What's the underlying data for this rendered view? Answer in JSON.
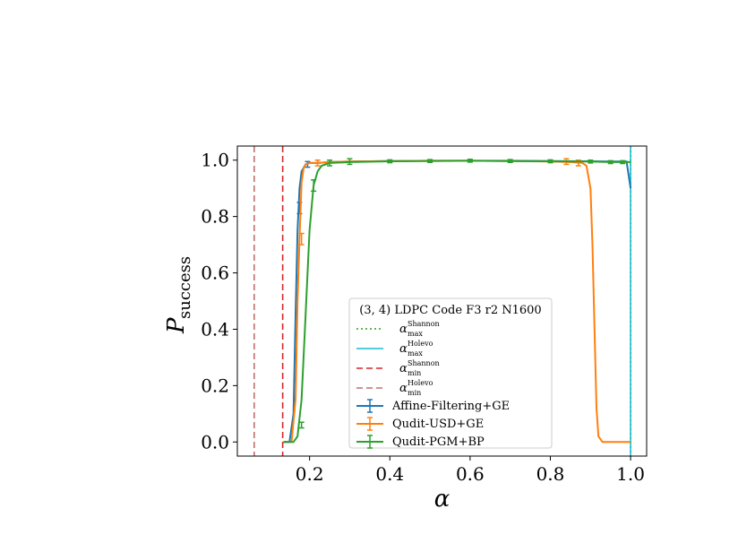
{
  "chart_data": {
    "type": "line",
    "title": "",
    "xlabel": "α",
    "ylabel": "P",
    "ylabel_sub": "success",
    "xlim": [
      0.02,
      1.04
    ],
    "ylim": [
      -0.05,
      1.05
    ],
    "xticks": [
      0.2,
      0.4,
      0.6,
      0.8,
      1.0
    ],
    "xtick_labels": [
      "0.2",
      "0.4",
      "0.6",
      "0.8",
      "1.0"
    ],
    "yticks": [
      0.0,
      0.2,
      0.4,
      0.6,
      0.8,
      1.0
    ],
    "ytick_labels": [
      "0.0",
      "0.2",
      "0.4",
      "0.6",
      "0.8",
      "1.0"
    ],
    "grid": false,
    "legend_placement": "lower-center",
    "legend_title": "(3, 4) LDPC Code F3 r2 N1600",
    "vlines": [
      {
        "name": "α",
        "sup": "Shannon",
        "sub": "max",
        "x": 1.0,
        "color": "#2ca02c",
        "style": "dotted"
      },
      {
        "name": "α",
        "sup": "Holevo",
        "sub": "max",
        "x": 1.0,
        "color": "#17becf",
        "style": "solid"
      },
      {
        "name": "α",
        "sup": "Shannon",
        "sub": "min",
        "x": 0.133,
        "color": "#d62728",
        "style": "dashed"
      },
      {
        "name": "α",
        "sup": "Holevo",
        "sub": "min",
        "x": 0.062,
        "color": "#c1706b",
        "style": "dashed"
      }
    ],
    "series": [
      {
        "name": "Affine-Filtering+GE",
        "color": "#1f77b4",
        "x": [
          0.135,
          0.15,
          0.16,
          0.165,
          0.17,
          0.175,
          0.18,
          0.19,
          0.2,
          0.22,
          0.25,
          0.3,
          0.4,
          0.5,
          0.6,
          0.7,
          0.8,
          0.9,
          0.95,
          0.99,
          1.0
        ],
        "y": [
          0.0,
          0.0,
          0.1,
          0.45,
          0.75,
          0.9,
          0.96,
          0.985,
          0.99,
          0.99,
          0.993,
          0.995,
          0.997,
          0.998,
          0.998,
          0.998,
          0.997,
          0.996,
          0.995,
          0.995,
          0.9
        ],
        "errorbars": [
          [
            0.175,
            0.83,
            0.02
          ],
          [
            0.195,
            0.985,
            0.01
          ]
        ]
      },
      {
        "name": "Qudit-USD+GE",
        "color": "#ff7f0e",
        "x": [
          0.135,
          0.155,
          0.165,
          0.17,
          0.175,
          0.18,
          0.185,
          0.19,
          0.2,
          0.22,
          0.25,
          0.3,
          0.4,
          0.5,
          0.6,
          0.7,
          0.8,
          0.85,
          0.88,
          0.89,
          0.9,
          0.905,
          0.91,
          0.915,
          0.92,
          0.93,
          1.0
        ],
        "y": [
          0.0,
          0.0,
          0.15,
          0.5,
          0.72,
          0.92,
          0.97,
          0.985,
          0.99,
          0.99,
          0.993,
          0.995,
          0.997,
          0.998,
          0.998,
          0.997,
          0.995,
          0.993,
          0.99,
          0.98,
          0.9,
          0.7,
          0.4,
          0.12,
          0.02,
          0.0,
          0.0
        ],
        "errorbars": [
          [
            0.18,
            0.72,
            0.02
          ],
          [
            0.22,
            0.99,
            0.01
          ],
          [
            0.84,
            0.995,
            0.01
          ],
          [
            0.87,
            0.99,
            0.01
          ]
        ]
      },
      {
        "name": "Qudit-PGM+BP",
        "color": "#2ca02c",
        "x": [
          0.135,
          0.16,
          0.17,
          0.18,
          0.19,
          0.2,
          0.21,
          0.22,
          0.23,
          0.25,
          0.3,
          0.4,
          0.5,
          0.6,
          0.7,
          0.8,
          0.9,
          0.95,
          0.98,
          1.0
        ],
        "y": [
          0.0,
          0.0,
          0.02,
          0.15,
          0.45,
          0.75,
          0.91,
          0.96,
          0.98,
          0.99,
          0.993,
          0.996,
          0.997,
          0.998,
          0.997,
          0.996,
          0.995,
          0.993,
          0.993,
          0.993
        ],
        "errorbars": [
          [
            0.18,
            0.06,
            0.01
          ],
          [
            0.21,
            0.91,
            0.02
          ],
          [
            0.25,
            0.99,
            0.01
          ],
          [
            0.3,
            0.995,
            0.01
          ],
          [
            0.4,
            0.996,
            0.005
          ],
          [
            0.5,
            0.997,
            0.005
          ],
          [
            0.6,
            0.998,
            0.005
          ],
          [
            0.7,
            0.997,
            0.005
          ],
          [
            0.8,
            0.996,
            0.005
          ],
          [
            0.9,
            0.995,
            0.005
          ],
          [
            0.95,
            0.993,
            0.005
          ],
          [
            0.98,
            0.993,
            0.005
          ]
        ]
      }
    ]
  }
}
